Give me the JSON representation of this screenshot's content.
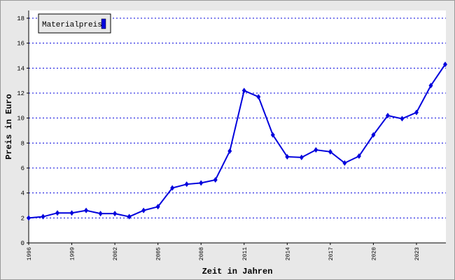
{
  "chart_data": {
    "type": "line",
    "x_label": "Zeit in Jahren",
    "y_label": "Preis in Euro",
    "x": [
      1996,
      1997,
      1998,
      1999,
      2000,
      2001,
      2002,
      2003,
      2004,
      2005,
      2006,
      2007,
      2008,
      2009,
      2010,
      2011,
      2012,
      2013,
      2014,
      2015,
      2016,
      2017,
      2018,
      2019,
      2020,
      2021,
      2022,
      2023,
      2024,
      2025
    ],
    "series": [
      {
        "name": "Materialpreis",
        "color": "#0000dd",
        "values": [
          2.0,
          2.1,
          2.4,
          2.4,
          2.6,
          2.35,
          2.35,
          2.1,
          2.6,
          2.9,
          4.4,
          4.7,
          4.8,
          5.05,
          7.35,
          12.2,
          11.7,
          8.65,
          6.9,
          6.85,
          7.45,
          7.3,
          6.4,
          6.95,
          8.65,
          10.2,
          9.95,
          10.45,
          12.6,
          14.3
        ]
      }
    ],
    "xlim": [
      1996,
      2025
    ],
    "xticks": [
      1996,
      1999,
      2002,
      2005,
      2008,
      2011,
      2014,
      2017,
      2020,
      2023
    ],
    "ylim": [
      0,
      18
    ],
    "yticks": [
      0,
      2,
      4,
      6,
      8,
      10,
      12,
      14,
      16,
      18
    ],
    "grid": true,
    "legend": "upper left"
  }
}
